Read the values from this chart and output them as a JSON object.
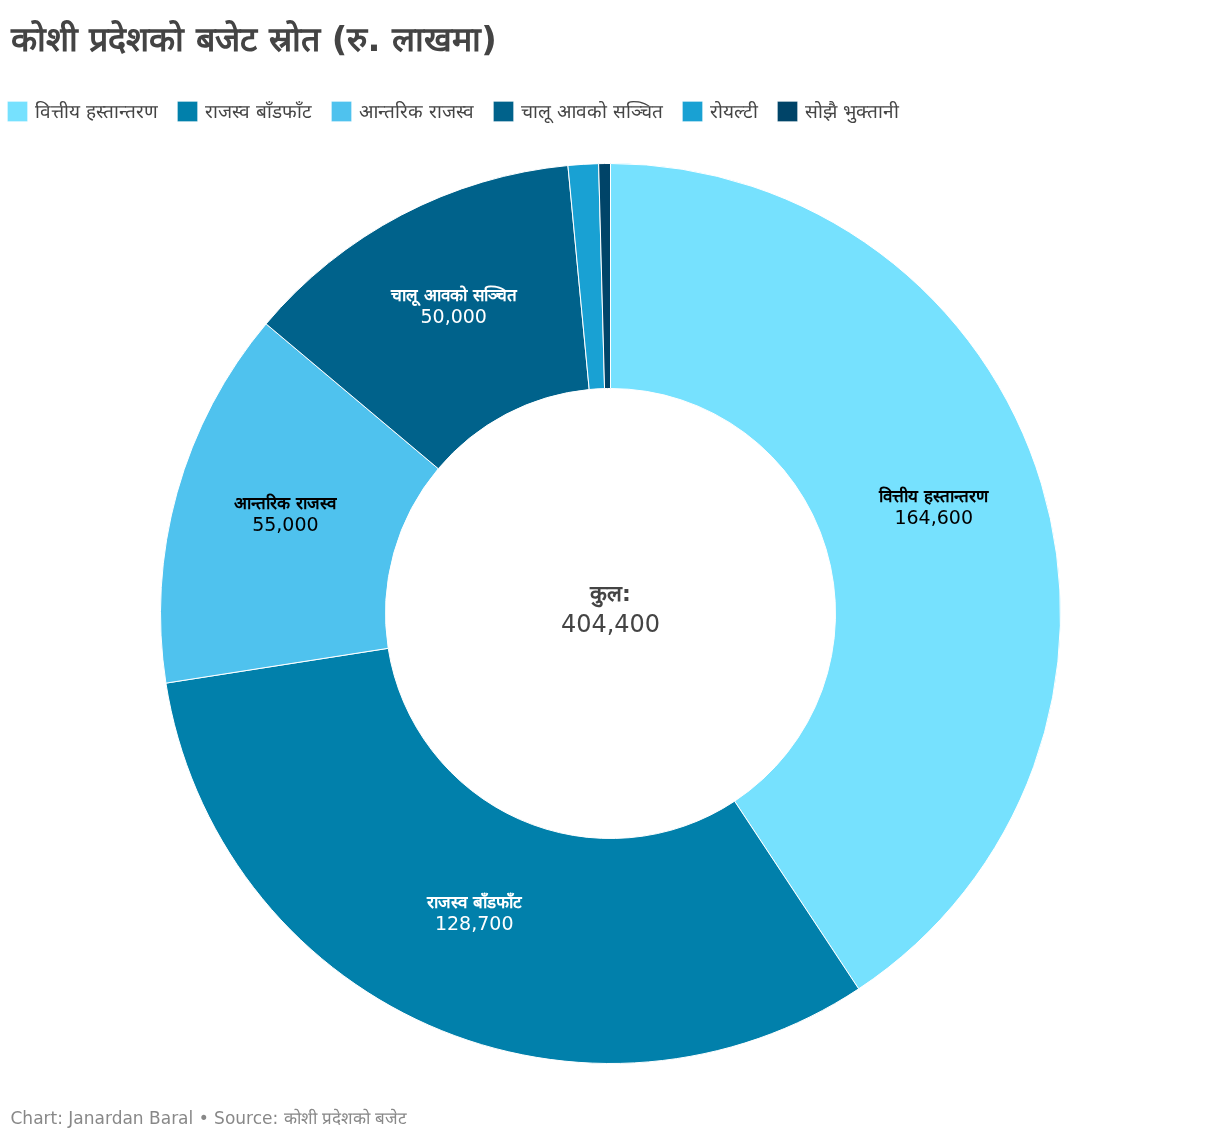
{
  "chart_data": {
    "type": "donut",
    "title": "कोशी प्रदेशको बजेट स्रोत (रु. लाखमा)",
    "categories": [
      "वित्तीय हस्तान्तरण",
      "राजस्व बाँडफाँट",
      "आन्तरिक राजस्व",
      "चालू आवको सञ्चित",
      "रोयल्टी",
      "सोझै भुक्तानी"
    ],
    "values": [
      164600,
      128700,
      55000,
      50000,
      4400,
      1700
    ],
    "colors": [
      "#76e1fe",
      "#0180ab",
      "#4fc2ee",
      "#00628b",
      "#19a1d3",
      "#004468"
    ],
    "value_labels": [
      "164,600",
      "128,700",
      "55,000",
      "50,000",
      null,
      null
    ],
    "legend": "top left",
    "annotations": [
      "कुल:",
      "404,400",
      "Chart: Janardan Baral • Source: कोशी प्रदेशको बजेट"
    ]
  }
}
